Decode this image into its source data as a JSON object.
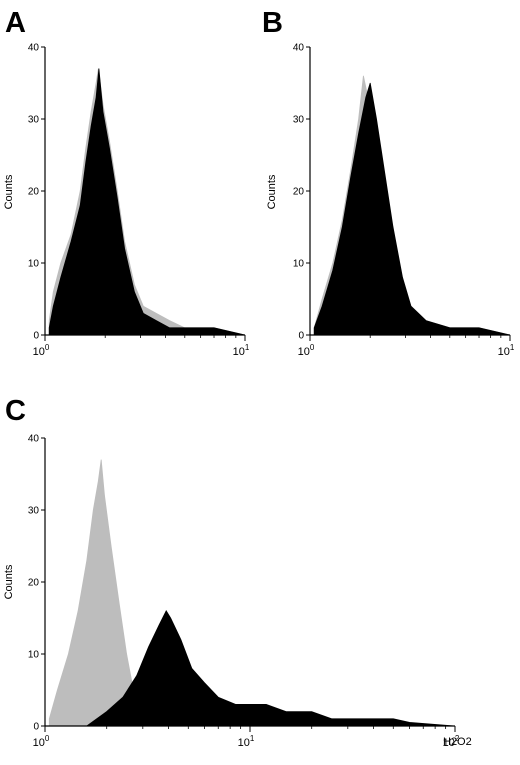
{
  "colors": {
    "control": "#bdbdbd",
    "treated": "#000000",
    "axis": "#000000"
  },
  "chart_data": [
    {
      "panel": "A",
      "type": "area",
      "ylabel": "Counts",
      "xlabel": "",
      "xscale": "log",
      "xlim": [
        1,
        10
      ],
      "ylim": [
        0,
        40
      ],
      "yticks": [
        "0",
        "10",
        "20",
        "30",
        "40"
      ],
      "xticks": [
        {
          "base": "10",
          "exp": "0"
        },
        {
          "base": "10",
          "exp": "1"
        }
      ],
      "series": [
        {
          "role": "control",
          "points": [
            [
              1.05,
              2
            ],
            [
              1.1,
              6
            ],
            [
              1.2,
              10
            ],
            [
              1.35,
              14
            ],
            [
              1.5,
              20
            ],
            [
              1.6,
              26
            ],
            [
              1.7,
              31
            ],
            [
              1.8,
              35
            ],
            [
              1.85,
              37
            ],
            [
              1.95,
              32
            ],
            [
              2.1,
              27
            ],
            [
              2.3,
              20
            ],
            [
              2.5,
              13
            ],
            [
              2.8,
              7
            ],
            [
              3.1,
              4
            ],
            [
              3.6,
              3
            ],
            [
              4.2,
              2
            ],
            [
              5,
              1
            ],
            [
              7,
              1
            ],
            [
              10,
              0
            ]
          ]
        },
        {
          "role": "treated",
          "points": [
            [
              1.05,
              1
            ],
            [
              1.1,
              4
            ],
            [
              1.2,
              8
            ],
            [
              1.35,
              13
            ],
            [
              1.5,
              18
            ],
            [
              1.6,
              24
            ],
            [
              1.7,
              29
            ],
            [
              1.8,
              33
            ],
            [
              1.86,
              37
            ],
            [
              1.95,
              31
            ],
            [
              2.1,
              26
            ],
            [
              2.3,
              19
            ],
            [
              2.5,
              12
            ],
            [
              2.8,
              6
            ],
            [
              3.1,
              3
            ],
            [
              3.6,
              2
            ],
            [
              4.2,
              1
            ],
            [
              5,
              1
            ],
            [
              7,
              1
            ],
            [
              10,
              0
            ]
          ]
        }
      ]
    },
    {
      "panel": "B",
      "type": "area",
      "ylabel": "Counts",
      "xlabel": "",
      "xscale": "log",
      "xlim": [
        1,
        10
      ],
      "ylim": [
        0,
        40
      ],
      "yticks": [
        "0",
        "10",
        "20",
        "30",
        "40"
      ],
      "xticks": [
        {
          "base": "10",
          "exp": "0"
        },
        {
          "base": "10",
          "exp": "1"
        }
      ],
      "series": [
        {
          "role": "control",
          "points": [
            [
              1.05,
              1
            ],
            [
              1.15,
              5
            ],
            [
              1.3,
              10
            ],
            [
              1.45,
              16
            ],
            [
              1.6,
              23
            ],
            [
              1.75,
              30
            ],
            [
              1.85,
              36
            ],
            [
              1.95,
              33
            ],
            [
              2.1,
              28
            ],
            [
              2.3,
              22
            ],
            [
              2.5,
              14
            ],
            [
              2.8,
              7
            ],
            [
              3.2,
              3
            ],
            [
              3.8,
              2
            ],
            [
              5,
              1
            ],
            [
              7,
              1
            ],
            [
              10,
              0
            ]
          ]
        },
        {
          "role": "treated",
          "points": [
            [
              1.05,
              1
            ],
            [
              1.15,
              4
            ],
            [
              1.3,
              9
            ],
            [
              1.45,
              15
            ],
            [
              1.6,
              22
            ],
            [
              1.75,
              28
            ],
            [
              1.9,
              33
            ],
            [
              2.0,
              35
            ],
            [
              2.15,
              30
            ],
            [
              2.35,
              23
            ],
            [
              2.6,
              15
            ],
            [
              2.9,
              8
            ],
            [
              3.2,
              4
            ],
            [
              3.8,
              2
            ],
            [
              5,
              1
            ],
            [
              7,
              1
            ],
            [
              10,
              0
            ]
          ]
        }
      ]
    },
    {
      "panel": "C",
      "type": "area",
      "ylabel": "Counts",
      "xlabel": "H2O2",
      "xscale": "log",
      "xlim": [
        1,
        100
      ],
      "ylim": [
        0,
        40
      ],
      "yticks": [
        "0",
        "10",
        "20",
        "30",
        "40"
      ],
      "xticks": [
        {
          "base": "10",
          "exp": "0"
        },
        {
          "base": "10",
          "exp": "1"
        },
        {
          "base": "10",
          "exp": "2"
        }
      ],
      "series": [
        {
          "role": "control",
          "points": [
            [
              1.05,
              1
            ],
            [
              1.15,
              5
            ],
            [
              1.3,
              10
            ],
            [
              1.45,
              16
            ],
            [
              1.6,
              23
            ],
            [
              1.72,
              30
            ],
            [
              1.82,
              34
            ],
            [
              1.88,
              37
            ],
            [
              1.95,
              32
            ],
            [
              2.1,
              25
            ],
            [
              2.3,
              17
            ],
            [
              2.5,
              10
            ],
            [
              2.7,
              5
            ],
            [
              3.0,
              2
            ],
            [
              3.5,
              1
            ],
            [
              4.5,
              0
            ]
          ]
        },
        {
          "role": "treated",
          "points": [
            [
              1.6,
              0
            ],
            [
              2.0,
              2
            ],
            [
              2.4,
              4
            ],
            [
              2.8,
              7
            ],
            [
              3.2,
              11
            ],
            [
              3.6,
              14
            ],
            [
              3.9,
              16
            ],
            [
              4.1,
              15
            ],
            [
              4.6,
              12
            ],
            [
              5.2,
              8
            ],
            [
              6,
              6
            ],
            [
              7,
              4
            ],
            [
              8.5,
              3
            ],
            [
              10,
              3
            ],
            [
              12,
              3
            ],
            [
              15,
              2
            ],
            [
              20,
              2
            ],
            [
              25,
              1
            ],
            [
              30,
              1
            ],
            [
              40,
              1
            ],
            [
              50,
              1
            ],
            [
              60,
              0.5
            ],
            [
              100,
              0
            ]
          ]
        }
      ]
    }
  ]
}
